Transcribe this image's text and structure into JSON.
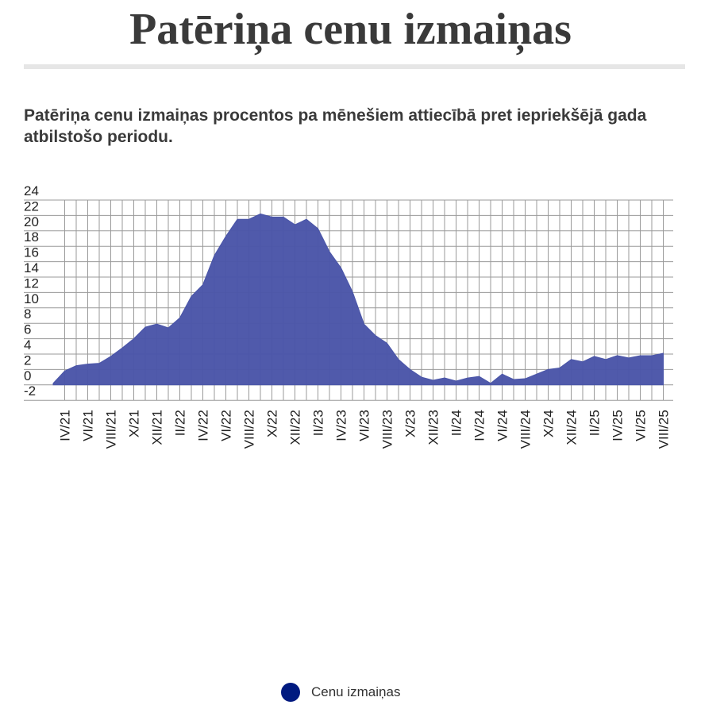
{
  "header": {
    "title": "Patēriņa cenu izmaiņas",
    "subtitle": "Patēriņa cenu izmaiņas procentos pa mēnešiem attiecībā pret iepriekšējā gada atbilstošo periodu."
  },
  "legend": {
    "label": "Cenu izmaiņas",
    "color": "#001a80"
  },
  "chart_data": {
    "type": "area",
    "title": "Patēriņa cenu izmaiņas",
    "subtitle": "Patēriņa cenu izmaiņas procentos pa mēnešiem attiecībā pret iepriekšējā gada atbilstošo periodu.",
    "xlabel": "",
    "ylabel": "",
    "ylim": [
      -2,
      24
    ],
    "yticks": [
      -2,
      0,
      2,
      4,
      6,
      8,
      10,
      12,
      14,
      16,
      18,
      20,
      22,
      24
    ],
    "grid": true,
    "legend_position": "bottom",
    "fill_color": "#4a55a8",
    "x_tick_labels": [
      "IV/21",
      "VI/21",
      "VIII/21",
      "X/21",
      "XII/21",
      "II/22",
      "IV/22",
      "VI/22",
      "VIII/22",
      "X/22",
      "XII/22",
      "II/23",
      "IV/23",
      "VI/23",
      "VIII/23",
      "X/23",
      "XII/23",
      "II/24",
      "IV/24",
      "VI/24",
      "VIII/24",
      "X/24",
      "XII/24",
      "II/25",
      "IV/25",
      "VI/25",
      "VIII/25"
    ],
    "x": [
      "III/21",
      "IV/21",
      "V/21",
      "VI/21",
      "VII/21",
      "VIII/21",
      "IX/21",
      "X/21",
      "XI/21",
      "XII/21",
      "I/22",
      "II/22",
      "III/22",
      "IV/22",
      "V/22",
      "VI/22",
      "VII/22",
      "VIII/22",
      "IX/22",
      "X/22",
      "XI/22",
      "XII/22",
      "I/23",
      "II/23",
      "III/23",
      "IV/23",
      "V/23",
      "VI/23",
      "VII/23",
      "VIII/23",
      "IX/23",
      "X/23",
      "XI/23",
      "XII/23",
      "I/24",
      "II/24",
      "III/24",
      "IV/24",
      "V/24",
      "VI/24",
      "VII/24",
      "VIII/24",
      "IX/24",
      "X/24",
      "XI/24",
      "XII/24",
      "I/25",
      "II/25",
      "III/25",
      "IV/25",
      "V/25",
      "VI/25",
      "VII/25",
      "VIII/25"
    ],
    "series": [
      {
        "name": "Cenu izmaiņas",
        "values": [
          0.2,
          1.8,
          2.5,
          2.7,
          2.8,
          3.7,
          4.8,
          6.0,
          7.5,
          7.9,
          7.4,
          8.7,
          11.5,
          13.0,
          16.8,
          19.3,
          21.5,
          21.5,
          22.2,
          21.8,
          21.8,
          20.8,
          21.5,
          20.3,
          17.3,
          15.2,
          12.1,
          7.9,
          6.4,
          5.4,
          3.3,
          2.0,
          1.0,
          0.6,
          0.9,
          0.5,
          0.9,
          1.1,
          0.2,
          1.4,
          0.7,
          0.8,
          1.4,
          2.0,
          2.2,
          3.3,
          3.0,
          3.7,
          3.3,
          3.8,
          3.5,
          3.8,
          3.8,
          4.1
        ]
      }
    ]
  }
}
